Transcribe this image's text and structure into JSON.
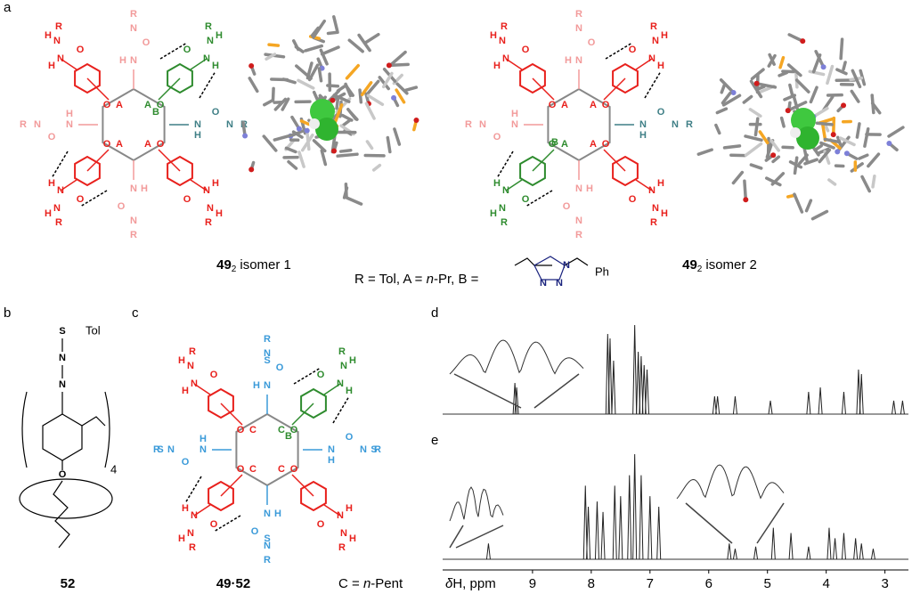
{
  "panel_labels": [
    "a",
    "b",
    "c"
  ],
  "atoms": {
    "A": "A",
    "B": "B",
    "C": "C",
    "R": "R",
    "O": "O",
    "H": "H",
    "N": "N",
    "Ph": "Ph",
    "Tol": "Tol",
    "S": "S",
    "sub4": "4"
  },
  "captions": {
    "isomer1": {
      "compound": "49",
      "subscript": "2",
      "label": "isomer 1"
    },
    "isomer2": {
      "compound": "49",
      "subscript": "2",
      "label": "isomer 2"
    },
    "legend_a": {
      "before": "R = Tol, A = ",
      "italic": "n",
      "after": "-Pr, B ="
    },
    "compound_52": "52",
    "complex": "49·52",
    "legend_c": {
      "before": "C = ",
      "italic": "n",
      "after": "-Pent"
    }
  },
  "nmr": {
    "xlabel": {
      "symbol": "δ",
      "rest": "H, ppm"
    },
    "xlim": [
      10.53,
      2.6
    ],
    "xticks": [
      9,
      8,
      7,
      6,
      5,
      4,
      3
    ],
    "spectra": [
      {
        "label": "d",
        "ppm": [
          9.3,
          9.27,
          7.72,
          7.68,
          7.62,
          7.26,
          7.2,
          7.15,
          7.1,
          7.05,
          5.9,
          5.85,
          5.55,
          4.95,
          4.3,
          4.1,
          3.7,
          3.45,
          3.4,
          2.85,
          2.7
        ],
        "intensity": [
          0.35,
          0.3,
          0.9,
          0.85,
          0.6,
          1.0,
          0.7,
          0.65,
          0.55,
          0.5,
          0.2,
          0.2,
          0.2,
          0.15,
          0.25,
          0.3,
          0.25,
          0.5,
          0.45,
          0.15,
          0.15
        ]
      },
      {
        "label": "e",
        "ppm": [
          9.75,
          8.1,
          8.05,
          7.9,
          7.8,
          7.6,
          7.5,
          7.35,
          7.26,
          7.15,
          7.0,
          6.85,
          5.65,
          5.55,
          5.2,
          4.9,
          4.6,
          4.3,
          3.95,
          3.85,
          3.7,
          3.5,
          3.4,
          3.2
        ],
        "intensity": [
          0.15,
          0.7,
          0.5,
          0.55,
          0.45,
          0.7,
          0.6,
          0.8,
          1.0,
          0.8,
          0.6,
          0.5,
          0.15,
          0.1,
          0.12,
          0.3,
          0.25,
          0.12,
          0.3,
          0.2,
          0.25,
          0.2,
          0.15,
          0.1
        ]
      }
    ]
  }
}
